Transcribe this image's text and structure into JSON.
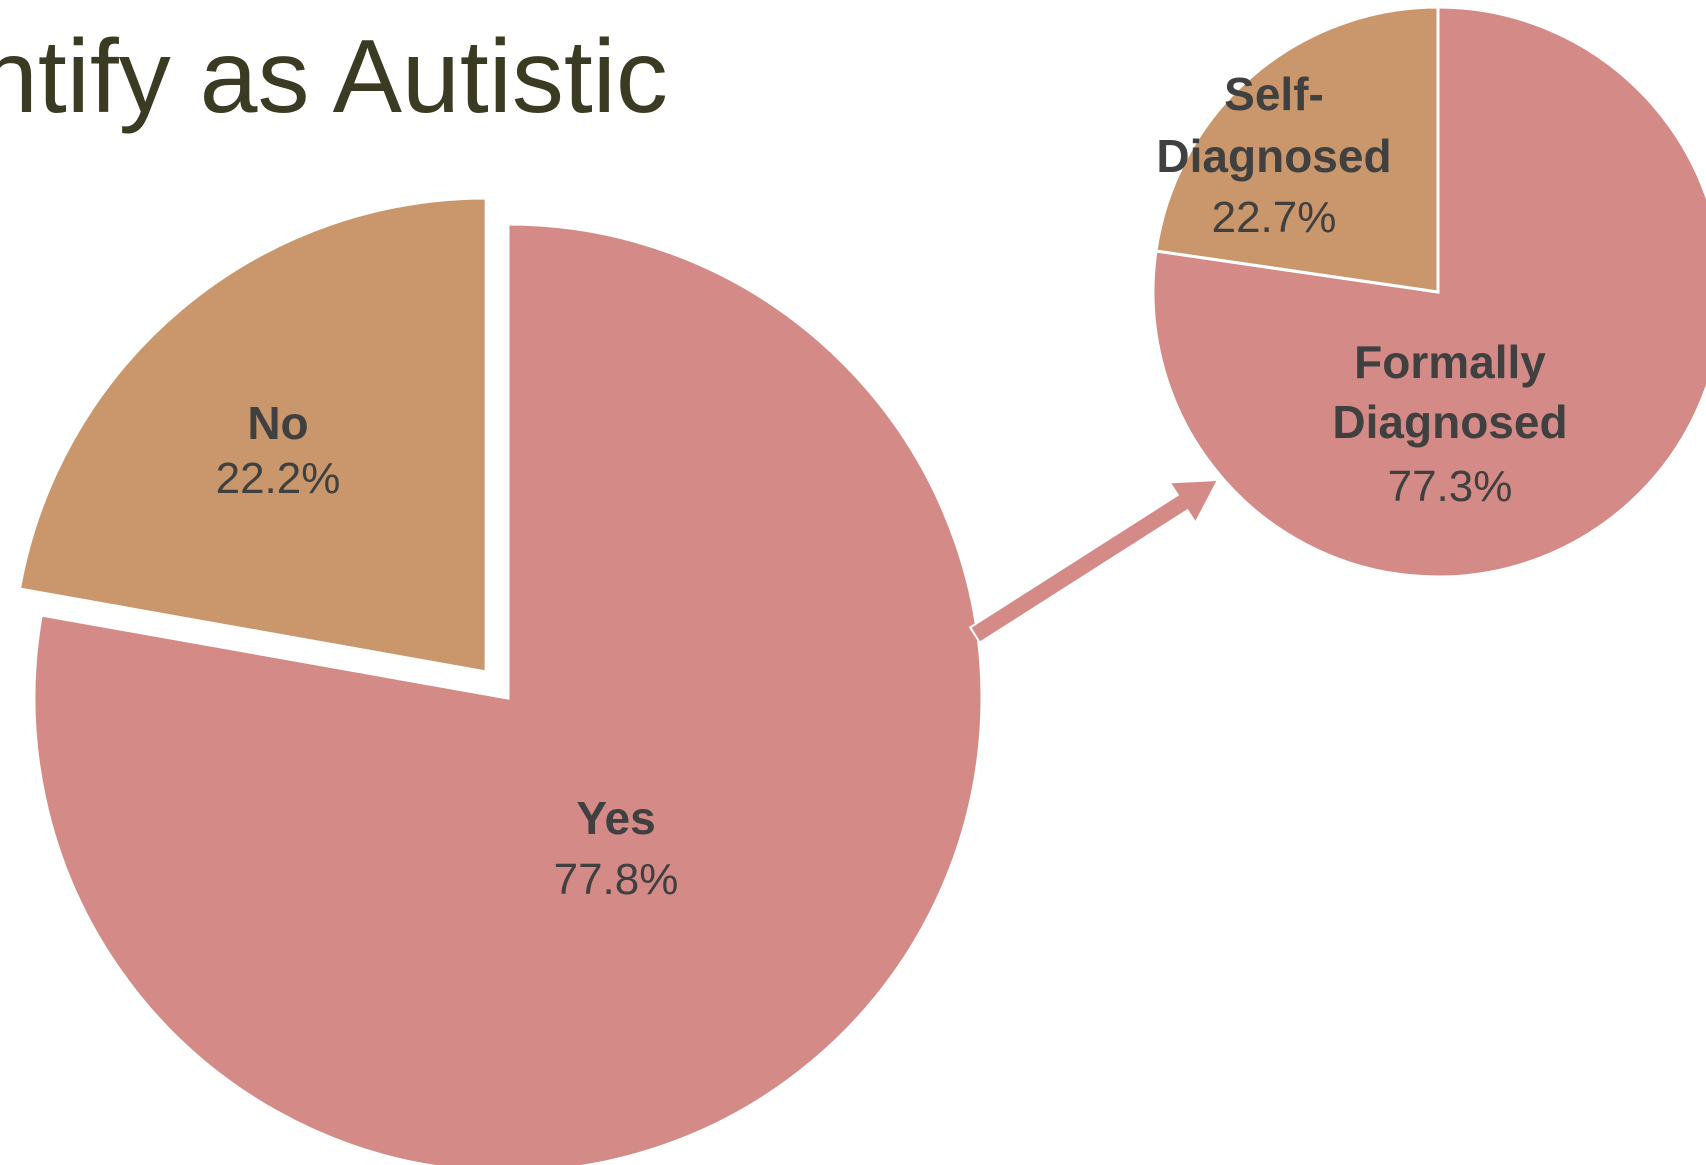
{
  "title_visible": "ntify as Autistic",
  "chart_data": [
    {
      "type": "pie",
      "slices": [
        {
          "label": "Yes",
          "value_label": "77.8%",
          "value": 77.8,
          "color": "#d48a86",
          "exploded": false
        },
        {
          "label": "No",
          "value_label": "22.2%",
          "value": 22.2,
          "color": "#c9976b",
          "exploded": true
        }
      ]
    },
    {
      "type": "pie",
      "slices": [
        {
          "label": "Formally Diagnosed",
          "label_lines": [
            "Formally",
            "Diagnosed"
          ],
          "value_label": "77.3%",
          "value": 77.3,
          "color": "#d48a86"
        },
        {
          "label": "Self-Diagnosed",
          "label_lines": [
            "Self-",
            "Diagnosed"
          ],
          "value_label": "22.7%",
          "value": 22.7,
          "color": "#c9976b"
        }
      ]
    }
  ],
  "arrow": {
    "color": "#d48a86"
  }
}
